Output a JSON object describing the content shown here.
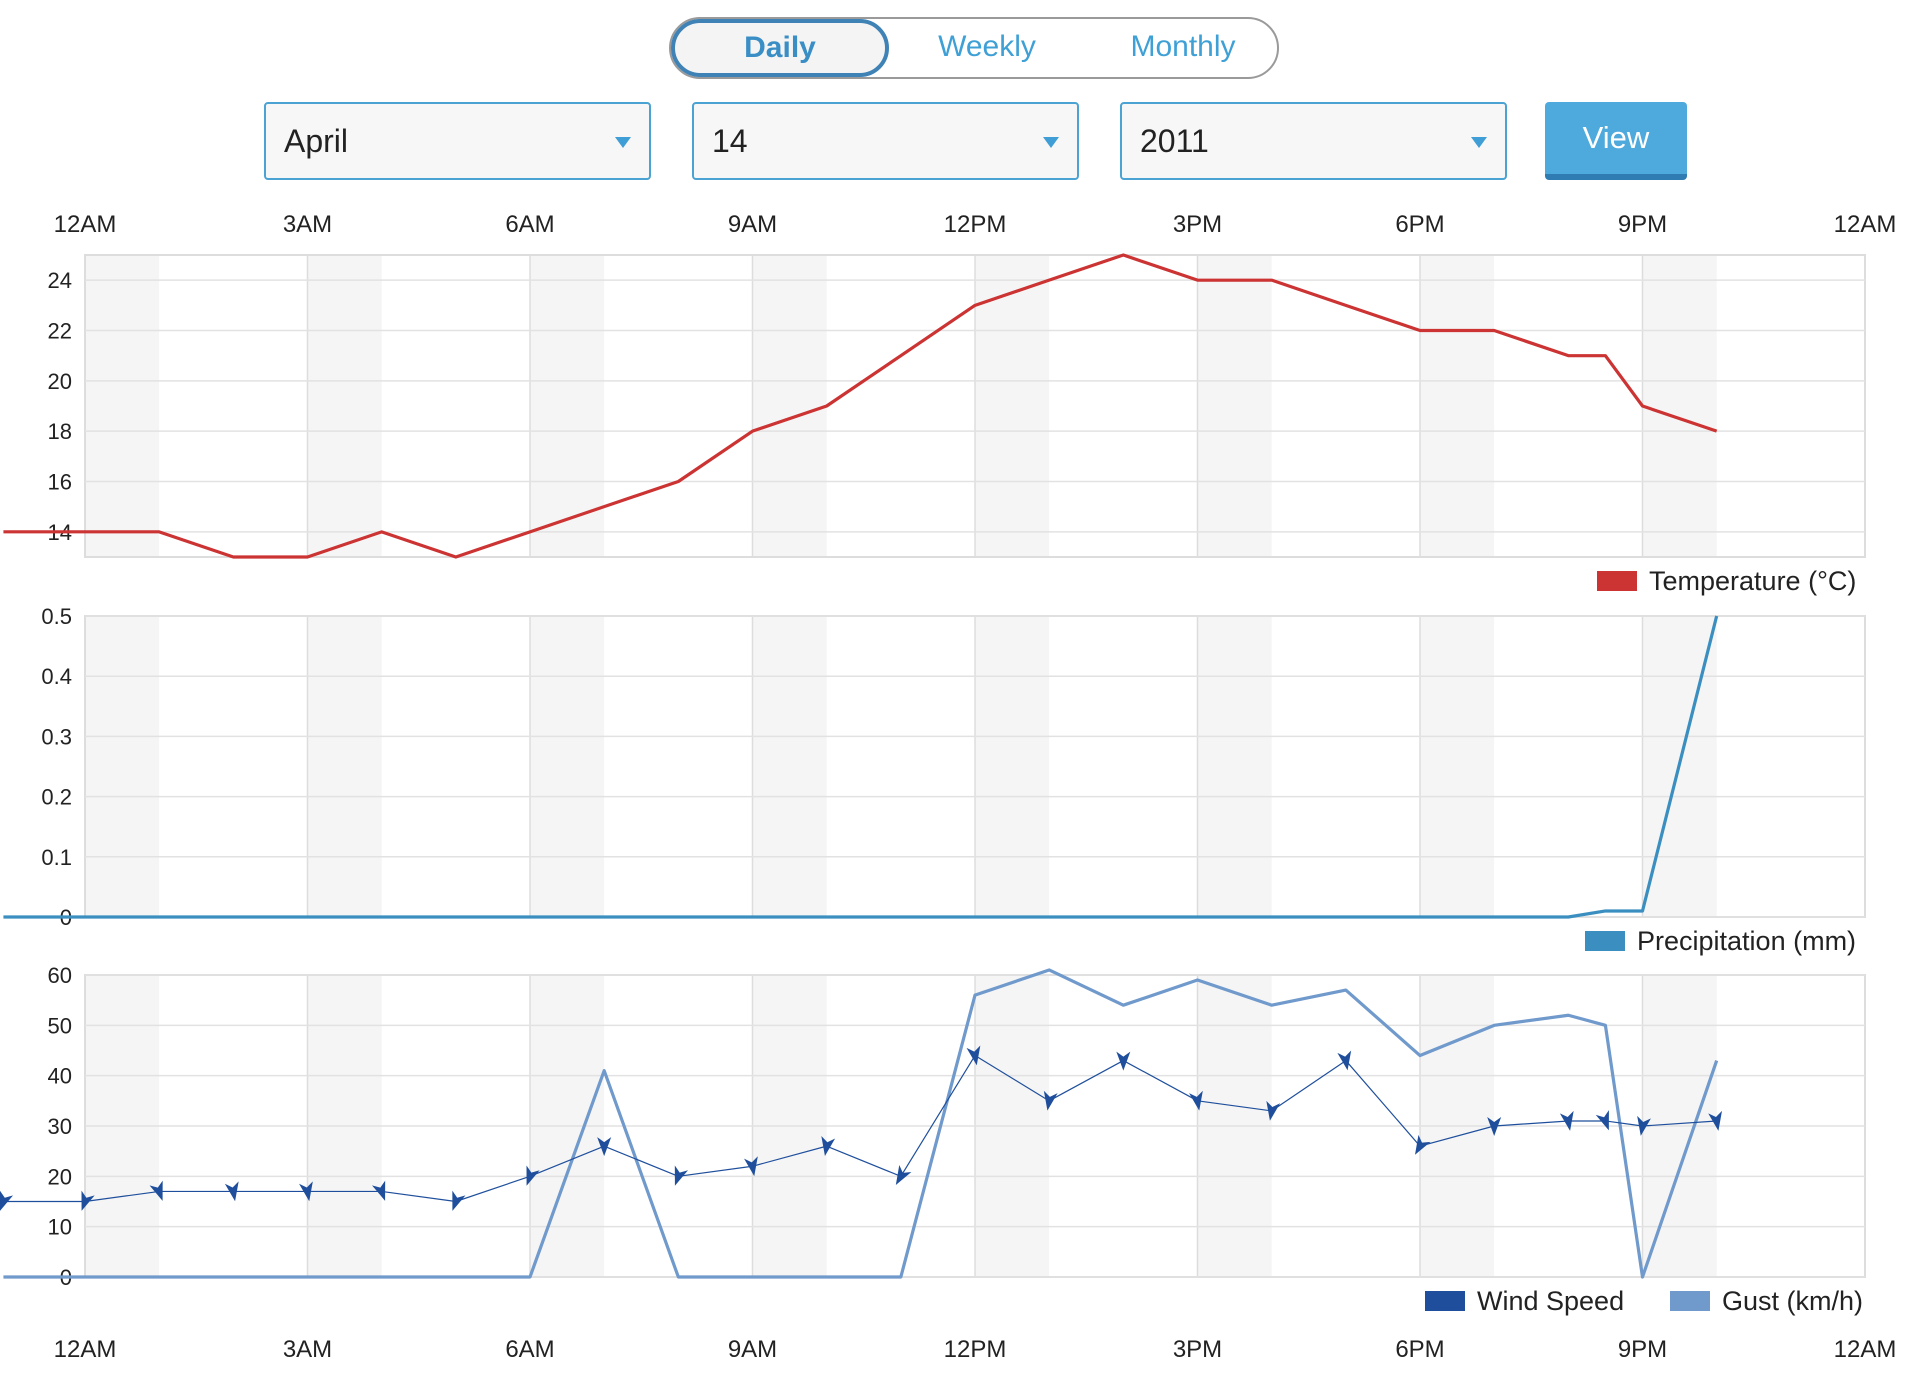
{
  "tabs": [
    {
      "label": "Daily",
      "active": true
    },
    {
      "label": "Weekly",
      "active": false
    },
    {
      "label": "Monthly",
      "active": false
    }
  ],
  "selects": {
    "month": "April",
    "day": "14",
    "year": "2011"
  },
  "view_button": "View",
  "colors": {
    "accent": "#4ea9dc",
    "temperature": "#cc3333",
    "precipitation": "#3a8fc0",
    "wind_speed": "#1f4f9c",
    "gust": "#7099cc"
  },
  "chart_data": [
    {
      "type": "line",
      "x_ticks": [
        "12AM",
        "3AM",
        "6AM",
        "9AM",
        "12PM",
        "3PM",
        "6PM",
        "9PM",
        "12AM"
      ],
      "ylim": [
        13,
        25
      ],
      "yticks": [
        14,
        16,
        18,
        20,
        22,
        24
      ],
      "grid": true,
      "legend_position": "bottom-right",
      "series": [
        {
          "name": "Temperature (°C)",
          "x": [
            -1.1,
            0,
            1,
            2,
            3,
            4,
            5,
            6,
            7,
            8,
            9,
            10,
            11,
            12,
            13,
            14,
            15,
            16,
            17,
            18,
            19,
            20,
            20.5,
            21,
            22
          ],
          "y": [
            14,
            14,
            14,
            13,
            13,
            14,
            13,
            14,
            15,
            16,
            18,
            19,
            21,
            23,
            24,
            25,
            24,
            24,
            23,
            22,
            22,
            21,
            21,
            19,
            18
          ]
        }
      ]
    },
    {
      "type": "area",
      "x_ticks": [
        "12AM",
        "3AM",
        "6AM",
        "9AM",
        "12PM",
        "3PM",
        "6PM",
        "9PM",
        "12AM"
      ],
      "ylim": [
        0,
        0.5
      ],
      "yticks": [
        0,
        0.1,
        0.2,
        0.3,
        0.4,
        0.5
      ],
      "grid": true,
      "legend_position": "bottom-right",
      "series": [
        {
          "name": "Precipitation (mm)",
          "x": [
            -1.1,
            0,
            1,
            2,
            3,
            4,
            5,
            6,
            7,
            8,
            9,
            10,
            11,
            12,
            13,
            14,
            15,
            16,
            17,
            18,
            19,
            20,
            20.5,
            21,
            22
          ],
          "y": [
            0,
            0,
            0,
            0,
            0,
            0,
            0,
            0,
            0,
            0,
            0,
            0,
            0,
            0,
            0,
            0,
            0,
            0,
            0,
            0,
            0,
            0,
            0.01,
            0.01,
            0.5
          ]
        }
      ]
    },
    {
      "type": "line",
      "x_ticks": [
        "12AM",
        "3AM",
        "6AM",
        "9AM",
        "12PM",
        "3PM",
        "6PM",
        "9PM",
        "12AM"
      ],
      "ylim": [
        0,
        60
      ],
      "yticks": [
        0,
        10,
        20,
        30,
        40,
        50,
        60
      ],
      "grid": true,
      "legend_position": "bottom-right",
      "series": [
        {
          "name": "Wind Speed",
          "x": [
            -1.1,
            0,
            1,
            2,
            3,
            4,
            5,
            6,
            7,
            8,
            9,
            10,
            11,
            12,
            13,
            14,
            15,
            16,
            17,
            18,
            19,
            20,
            20.5,
            21,
            22
          ],
          "y": [
            15,
            15,
            17,
            17,
            17,
            17,
            15,
            20,
            26,
            20,
            22,
            26,
            20,
            44,
            35,
            43,
            35,
            33,
            43,
            26,
            30,
            31,
            31,
            30,
            31
          ],
          "direction_deg": [
            200,
            200,
            160,
            170,
            170,
            160,
            200,
            200,
            180,
            200,
            170,
            190,
            210,
            170,
            190,
            180,
            170,
            190,
            170,
            210,
            180,
            170,
            160,
            190,
            170
          ]
        },
        {
          "name": "Gust (km/h)",
          "x": [
            -1.1,
            0,
            1,
            2,
            3,
            4,
            5,
            6,
            7,
            8,
            9,
            10,
            11,
            12,
            13,
            14,
            15,
            16,
            17,
            18,
            19,
            20,
            20.5,
            21,
            22
          ],
          "y": [
            0,
            0,
            0,
            0,
            0,
            0,
            0,
            0,
            41,
            0,
            0,
            0,
            0,
            56,
            61,
            54,
            59,
            54,
            57,
            44,
            50,
            52,
            50,
            0,
            43
          ]
        }
      ]
    }
  ]
}
